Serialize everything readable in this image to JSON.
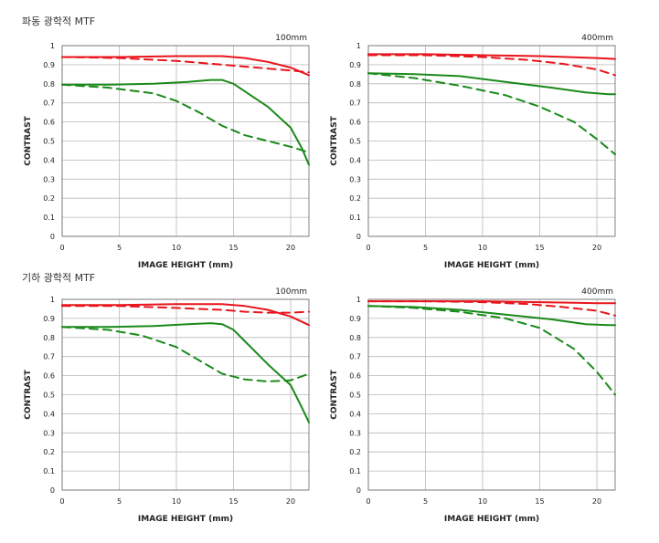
{
  "sections": [
    {
      "title": "파동 광학적 MTF"
    },
    {
      "title": "기하 광학적 MTF"
    }
  ],
  "colors": {
    "red": "#e8141b",
    "green": "#1a8a1a",
    "grid": "#b8b8b8",
    "frame": "#666666"
  },
  "chart_data": [
    {
      "type": "line",
      "section": "파동 광학적 MTF",
      "title": "100mm",
      "xlabel": "IMAGE HEIGHT (mm)",
      "ylabel": "CONTRAST",
      "xlim": [
        0,
        21.6
      ],
      "ylim": [
        0,
        1
      ],
      "xticks": [
        0,
        5,
        10,
        15,
        20
      ],
      "yticks": [
        0,
        0.1,
        0.2,
        0.3,
        0.4,
        0.5,
        0.6,
        0.7,
        0.8,
        0.9,
        1
      ],
      "ytick_labels": [
        "0",
        "0.1",
        "0.2",
        "0.3",
        "0.4",
        "0.5",
        "0.6",
        "0.7",
        "0.8",
        "0.9",
        "1"
      ],
      "grid": true,
      "series": [
        {
          "color": "red",
          "dash": false,
          "x": [
            0,
            5,
            10,
            14,
            16,
            18,
            20,
            21.6
          ],
          "y": [
            0.94,
            0.94,
            0.945,
            0.945,
            0.935,
            0.915,
            0.885,
            0.845
          ]
        },
        {
          "color": "red",
          "dash": true,
          "x": [
            0,
            5,
            10,
            14,
            16,
            18,
            20,
            21.6
          ],
          "y": [
            0.94,
            0.935,
            0.92,
            0.9,
            0.89,
            0.88,
            0.87,
            0.86
          ]
        },
        {
          "color": "green",
          "dash": false,
          "x": [
            0,
            4,
            8,
            11,
            13,
            14,
            15,
            16,
            18,
            20,
            21,
            21.6
          ],
          "y": [
            0.795,
            0.795,
            0.8,
            0.81,
            0.82,
            0.82,
            0.8,
            0.76,
            0.68,
            0.57,
            0.46,
            0.375
          ]
        },
        {
          "color": "green",
          "dash": true,
          "x": [
            0,
            4,
            8,
            10,
            12,
            14,
            16,
            18,
            20,
            21.6
          ],
          "y": [
            0.795,
            0.78,
            0.75,
            0.71,
            0.65,
            0.58,
            0.53,
            0.5,
            0.47,
            0.44
          ]
        }
      ]
    },
    {
      "type": "line",
      "section": "파동 광학적 MTF",
      "title": "400mm",
      "xlabel": "IMAGE HEIGHT (mm)",
      "ylabel": "CONTRAST",
      "xlim": [
        0,
        21.6
      ],
      "ylim": [
        0,
        1
      ],
      "xticks": [
        0,
        5,
        10,
        15,
        20
      ],
      "yticks": [
        0,
        0.1,
        0.2,
        0.3,
        0.4,
        0.5,
        0.6,
        0.7,
        0.8,
        0.9,
        1
      ],
      "ytick_labels": [
        "0",
        "0.1",
        "0.2",
        "0.3",
        "0.4",
        "0.5",
        "0.6",
        "0.7",
        "0.8",
        "0.9",
        "1"
      ],
      "grid": true,
      "series": [
        {
          "color": "red",
          "dash": false,
          "x": [
            0,
            5,
            10,
            15,
            20,
            21.6
          ],
          "y": [
            0.955,
            0.955,
            0.95,
            0.945,
            0.935,
            0.93
          ]
        },
        {
          "color": "red",
          "dash": true,
          "x": [
            0,
            5,
            10,
            14,
            17,
            20,
            21.6
          ],
          "y": [
            0.95,
            0.95,
            0.94,
            0.925,
            0.905,
            0.875,
            0.845
          ]
        },
        {
          "color": "green",
          "dash": false,
          "x": [
            0,
            4,
            8,
            12,
            16,
            19,
            21,
            21.6
          ],
          "y": [
            0.855,
            0.85,
            0.84,
            0.81,
            0.78,
            0.755,
            0.745,
            0.745
          ]
        },
        {
          "color": "green",
          "dash": true,
          "x": [
            0,
            4,
            8,
            12,
            15,
            18,
            20,
            21.6
          ],
          "y": [
            0.855,
            0.83,
            0.79,
            0.74,
            0.68,
            0.6,
            0.51,
            0.43
          ]
        }
      ]
    },
    {
      "type": "line",
      "section": "기하 광학적 MTF",
      "title": "100mm",
      "xlabel": "IMAGE HEIGHT (mm)",
      "ylabel": "CONTRAST",
      "xlim": [
        0,
        21.6
      ],
      "ylim": [
        0,
        1
      ],
      "xticks": [
        0,
        5,
        10,
        15,
        20
      ],
      "yticks": [
        0,
        0.1,
        0.2,
        0.3,
        0.4,
        0.5,
        0.6,
        0.7,
        0.8,
        0.9,
        1
      ],
      "ytick_labels": [
        "0",
        "0.1",
        "0.2",
        "0.3",
        "0.4",
        "0.5",
        "0.6",
        "0.7",
        "0.8",
        "0.9",
        "1"
      ],
      "grid": true,
      "series": [
        {
          "color": "red",
          "dash": false,
          "x": [
            0,
            5,
            10,
            14,
            16,
            18,
            20,
            21.6
          ],
          "y": [
            0.97,
            0.97,
            0.975,
            0.975,
            0.965,
            0.945,
            0.91,
            0.865
          ]
        },
        {
          "color": "red",
          "dash": true,
          "x": [
            0,
            5,
            10,
            14,
            16,
            18,
            20,
            21.6
          ],
          "y": [
            0.965,
            0.965,
            0.955,
            0.945,
            0.935,
            0.93,
            0.93,
            0.935
          ]
        },
        {
          "color": "green",
          "dash": false,
          "x": [
            0,
            4,
            8,
            11,
            13,
            14,
            15,
            16,
            18,
            20,
            21,
            21.6
          ],
          "y": [
            0.855,
            0.855,
            0.86,
            0.87,
            0.875,
            0.87,
            0.84,
            0.78,
            0.66,
            0.55,
            0.43,
            0.355
          ]
        },
        {
          "color": "green",
          "dash": true,
          "x": [
            0,
            4,
            7,
            10,
            12,
            14,
            16,
            18,
            20,
            21.6
          ],
          "y": [
            0.855,
            0.84,
            0.81,
            0.75,
            0.68,
            0.61,
            0.58,
            0.57,
            0.575,
            0.61
          ]
        }
      ]
    },
    {
      "type": "line",
      "section": "기하 광학적 MTF",
      "title": "400mm",
      "xlabel": "IMAGE HEIGHT (mm)",
      "ylabel": "CONTRAST",
      "xlim": [
        0,
        21.6
      ],
      "ylim": [
        0,
        1
      ],
      "xticks": [
        0,
        5,
        10,
        15,
        20
      ],
      "yticks": [
        0,
        0.1,
        0.2,
        0.3,
        0.4,
        0.5,
        0.6,
        0.7,
        0.8,
        0.9,
        1
      ],
      "ytick_labels": [
        "0",
        "0.1",
        "0.2",
        "0.3",
        "0.4",
        "0.5",
        "0.6",
        "0.7",
        "0.8",
        "0.9",
        "1"
      ],
      "grid": true,
      "series": [
        {
          "color": "red",
          "dash": false,
          "x": [
            0,
            5,
            10,
            15,
            20,
            21.6
          ],
          "y": [
            0.99,
            0.99,
            0.99,
            0.985,
            0.98,
            0.98
          ]
        },
        {
          "color": "red",
          "dash": true,
          "x": [
            0,
            5,
            10,
            14,
            17,
            20,
            21.6
          ],
          "y": [
            0.99,
            0.99,
            0.985,
            0.975,
            0.96,
            0.94,
            0.915
          ]
        },
        {
          "color": "green",
          "dash": false,
          "x": [
            0,
            4,
            8,
            12,
            16,
            19,
            21,
            21.6
          ],
          "y": [
            0.965,
            0.96,
            0.945,
            0.92,
            0.895,
            0.87,
            0.865,
            0.865
          ]
        },
        {
          "color": "green",
          "dash": true,
          "x": [
            0,
            4,
            8,
            12,
            15,
            18,
            20,
            21.6
          ],
          "y": [
            0.965,
            0.955,
            0.935,
            0.9,
            0.85,
            0.74,
            0.62,
            0.5
          ]
        }
      ]
    }
  ]
}
